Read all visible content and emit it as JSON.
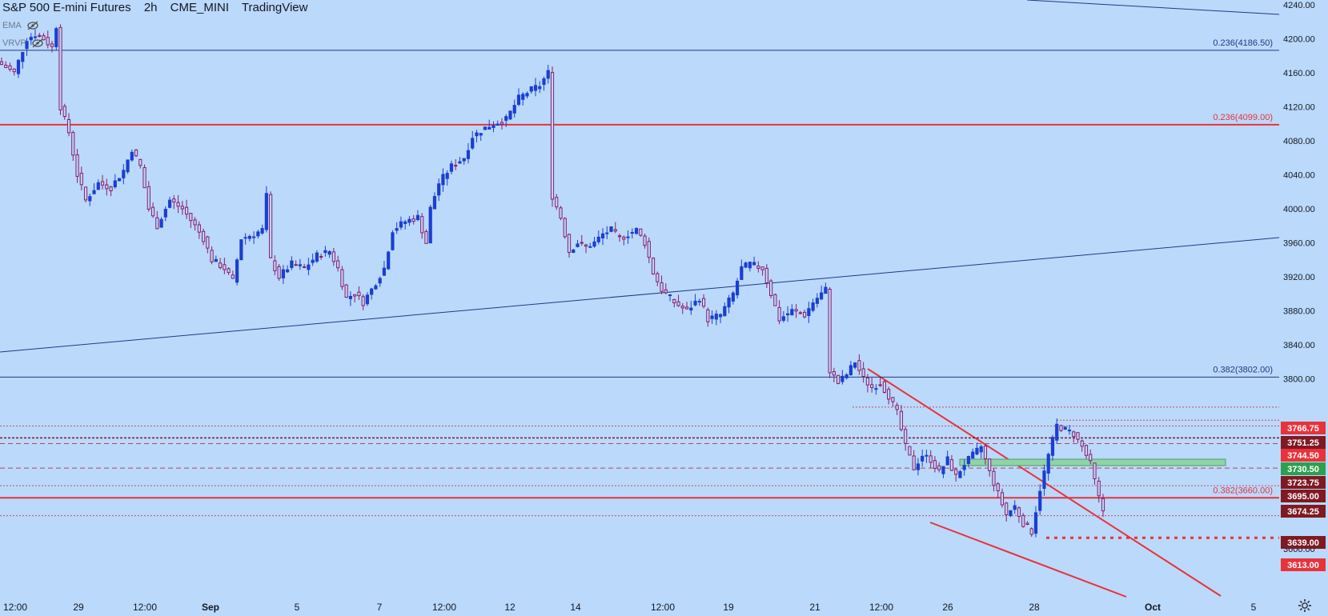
{
  "header": {
    "symbol": "S&P 500 E-mini Futures",
    "interval": "2h",
    "exchange": "CME_MINI",
    "source": "TradingView"
  },
  "indicators": [
    {
      "label": "EMA",
      "icon": "eye-hidden-icon"
    },
    {
      "label": "VRVP",
      "icon": "eye-hidden-icon"
    }
  ],
  "colors": {
    "background": "#bbd9fb",
    "bull": "#1a3fd1",
    "bear": "#8a1c6b",
    "fib_blue": "#1e3b86",
    "fib_red": "#e8333b",
    "trend_blue": "#1e3b86",
    "zone_green": "#8fd3a7",
    "label_red": "#e8333b",
    "label_maroon": "#7f1a22",
    "label_green": "#2f9e4f"
  },
  "chart_data": {
    "type": "candlestick",
    "y_range": [
      3585,
      4250
    ],
    "y_ticks": [
      "4240.00",
      "4200.00",
      "4160.00",
      "4120.00",
      "4080.00",
      "4040.00",
      "4000.00",
      "3960.00",
      "3920.00",
      "3880.00",
      "3840.00",
      "3800.00",
      "3600.00"
    ],
    "x_ticks": [
      "12:00",
      "29",
      "12:00",
      "Sep",
      "5",
      "7",
      "12:00",
      "12",
      "14",
      "12:00",
      "19",
      "21",
      "12:00",
      "26",
      "28",
      "Oct",
      "5"
    ],
    "fib_levels": [
      {
        "label": "0.236(4186.50)",
        "price": 4186.5,
        "color": "blue"
      },
      {
        "label": "0.236(4099.00)",
        "price": 4099.0,
        "color": "red"
      },
      {
        "label": "0.382(3802.00)",
        "price": 3802.0,
        "color": "blue"
      },
      {
        "label": "0.382(3660.00)",
        "price": 3660.0,
        "color": "red"
      }
    ],
    "price_labels": [
      {
        "text": "3766.75",
        "price": 3766.75,
        "style": "red"
      },
      {
        "text": "3751.25",
        "price": 3751.25,
        "style": "maroon"
      },
      {
        "text": "3744.50",
        "price": 3744.5,
        "style": "red"
      },
      {
        "text": "3730.50",
        "price": 3730.5,
        "style": "green"
      },
      {
        "text": "3723.75",
        "price": 3723.75,
        "style": "maroon"
      },
      {
        "text": "3695.00",
        "price": 3695.0,
        "style": "maroon"
      },
      {
        "text": "3674.25",
        "price": 3674.25,
        "style": "maroon"
      },
      {
        "text": "3639.00",
        "price": 3639.0,
        "style": "maroon"
      },
      {
        "text": "3613.00",
        "price": 3613.0,
        "style": "red"
      }
    ],
    "waypoints": [
      [
        0,
        4170
      ],
      [
        3,
        4160
      ],
      [
        6,
        4200
      ],
      [
        8,
        4205
      ],
      [
        10,
        4200
      ],
      [
        12,
        4190
      ],
      [
        13,
        4215
      ],
      [
        14,
        4120
      ],
      [
        16,
        4090
      ],
      [
        18,
        4040
      ],
      [
        20,
        4010
      ],
      [
        23,
        4030
      ],
      [
        26,
        4025
      ],
      [
        29,
        4045
      ],
      [
        31,
        4070
      ],
      [
        33,
        4050
      ],
      [
        35,
        4000
      ],
      [
        37,
        3980
      ],
      [
        40,
        4010
      ],
      [
        43,
        4000
      ],
      [
        46,
        3980
      ],
      [
        48,
        3965
      ],
      [
        50,
        3940
      ],
      [
        53,
        3930
      ],
      [
        55,
        3915
      ],
      [
        57,
        3965
      ],
      [
        60,
        3970
      ],
      [
        62,
        3975
      ],
      [
        63,
        4015
      ],
      [
        64,
        3940
      ],
      [
        66,
        3920
      ],
      [
        69,
        3935
      ],
      [
        72,
        3930
      ],
      [
        75,
        3945
      ],
      [
        78,
        3950
      ],
      [
        80,
        3930
      ],
      [
        82,
        3895
      ],
      [
        84,
        3900
      ],
      [
        86,
        3890
      ],
      [
        88,
        3905
      ],
      [
        91,
        3930
      ],
      [
        93,
        3975
      ],
      [
        96,
        3985
      ],
      [
        99,
        3990
      ],
      [
        101,
        3960
      ],
      [
        102,
        4000
      ],
      [
        104,
        4030
      ],
      [
        107,
        4050
      ],
      [
        110,
        4060
      ],
      [
        112,
        4085
      ],
      [
        115,
        4095
      ],
      [
        117,
        4100
      ],
      [
        120,
        4105
      ],
      [
        123,
        4130
      ],
      [
        126,
        4140
      ],
      [
        128,
        4145
      ],
      [
        130,
        4160
      ],
      [
        131,
        4015
      ],
      [
        133,
        3990
      ],
      [
        135,
        3950
      ],
      [
        137,
        3960
      ],
      [
        139,
        3955
      ],
      [
        141,
        3960
      ],
      [
        143,
        3970
      ],
      [
        145,
        3975
      ],
      [
        147,
        3965
      ],
      [
        149,
        3970
      ],
      [
        151,
        3975
      ],
      [
        153,
        3960
      ],
      [
        155,
        3925
      ],
      [
        157,
        3905
      ],
      [
        160,
        3890
      ],
      [
        163,
        3880
      ],
      [
        166,
        3895
      ],
      [
        168,
        3870
      ],
      [
        171,
        3875
      ],
      [
        174,
        3900
      ],
      [
        176,
        3930
      ],
      [
        178,
        3935
      ],
      [
        181,
        3930
      ],
      [
        183,
        3900
      ],
      [
        185,
        3870
      ],
      [
        188,
        3880
      ],
      [
        191,
        3875
      ],
      [
        193,
        3890
      ],
      [
        195,
        3900
      ],
      [
        196,
        3905
      ],
      [
        197,
        3810
      ],
      [
        199,
        3795
      ],
      [
        201,
        3805
      ],
      [
        203,
        3820
      ],
      [
        205,
        3800
      ],
      [
        207,
        3790
      ],
      [
        209,
        3795
      ],
      [
        211,
        3780
      ],
      [
        213,
        3760
      ],
      [
        215,
        3720
      ],
      [
        217,
        3695
      ],
      [
        219,
        3710
      ],
      [
        221,
        3705
      ],
      [
        223,
        3690
      ],
      [
        225,
        3705
      ],
      [
        227,
        3685
      ],
      [
        229,
        3700
      ],
      [
        231,
        3710
      ],
      [
        233,
        3720
      ],
      [
        235,
        3690
      ],
      [
        237,
        3665
      ],
      [
        239,
        3640
      ],
      [
        241,
        3650
      ],
      [
        243,
        3630
      ],
      [
        245,
        3620
      ],
      [
        247,
        3670
      ],
      [
        249,
        3710
      ],
      [
        251,
        3745
      ],
      [
        253,
        3740
      ],
      [
        255,
        3735
      ],
      [
        257,
        3720
      ],
      [
        259,
        3700
      ],
      [
        261,
        3660
      ],
      [
        262,
        3645
      ]
    ]
  }
}
